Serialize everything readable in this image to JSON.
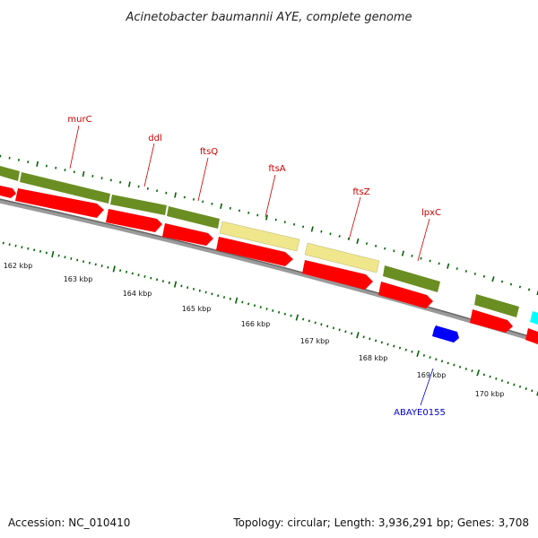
{
  "title": "Acinetobacter baumannii AYE, complete genome",
  "accession": "Accession: NC_010410",
  "topology": "Topology: circular; Length: 3,936,291 bp; Genes: 3,708",
  "colors": {
    "olive": "#6b8e23",
    "red": "#ff0000",
    "khaki": "#f0e68c",
    "blue": "#0000ff",
    "cyan": "#00ffff",
    "backbone": "#888888",
    "tick": "#006400",
    "label_red": "#cc0000",
    "label_blue": "#0000cc"
  },
  "gene_labels": [
    "murC",
    "ddl",
    "ftsQ",
    "ftsA",
    "ftsZ",
    "lpxC",
    "ABAYE0155"
  ],
  "kbp_labels": [
    "162 kbp",
    "163 kbp",
    "164 kbp",
    "165 kbp",
    "166 kbp",
    "167 kbp",
    "168 kbp",
    "169 kbp",
    "170 kbp"
  ]
}
